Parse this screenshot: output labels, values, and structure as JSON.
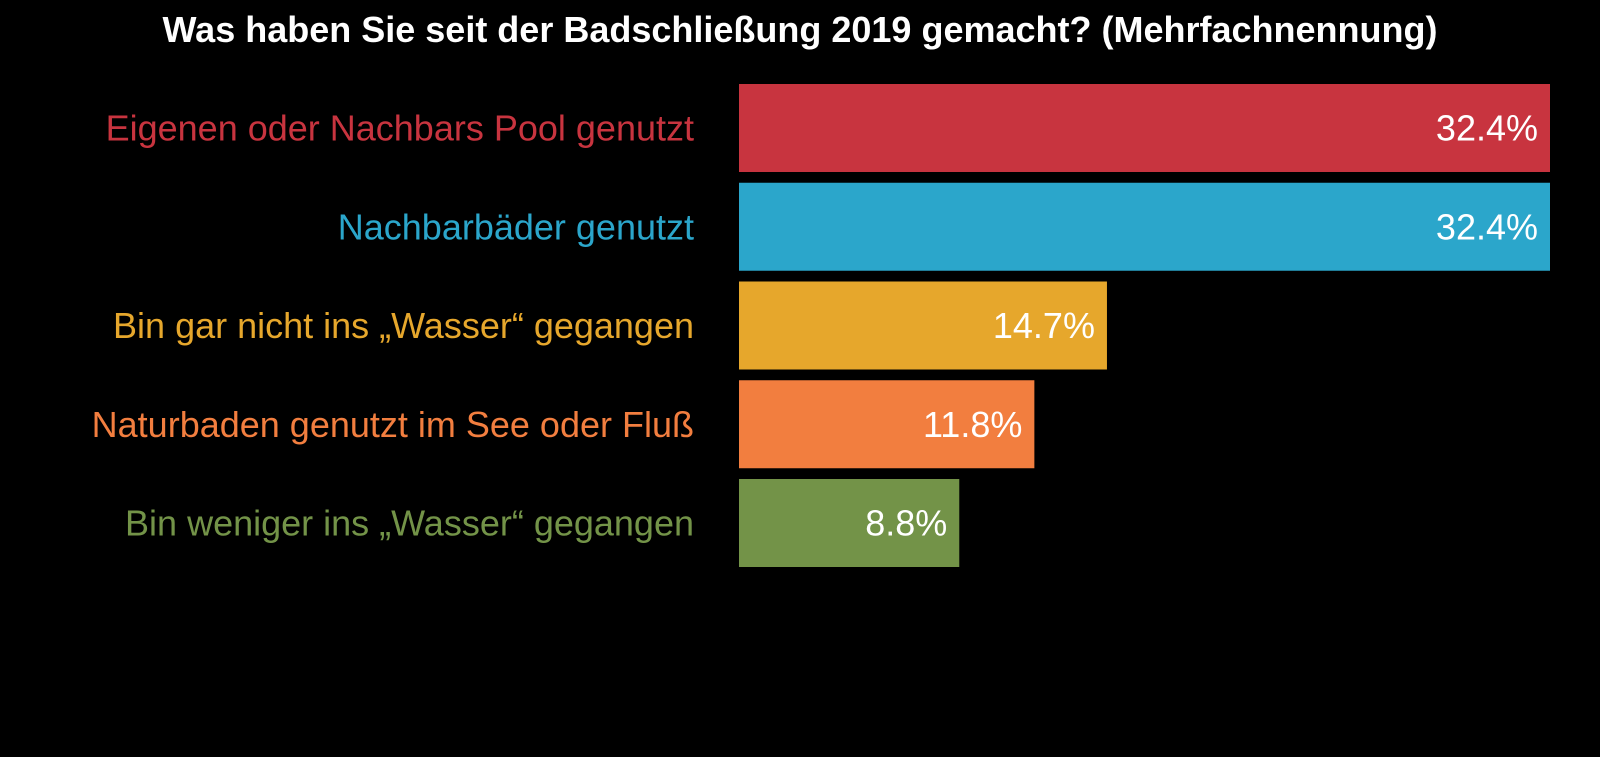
{
  "chart_data": {
    "type": "bar",
    "orientation": "horizontal",
    "title": "Was haben Sie seit der Badschließung 2019 gemacht? (Mehrfachnennung)",
    "categories": [
      "Eigenen oder Nachbars Pool genutzt",
      "Nachbarbäder genutzt",
      "Bin gar nicht ins „Wasser“ gegangen",
      "Naturbaden genutzt im See oder Fluß",
      "Bin weniger ins „Wasser“ gegangen"
    ],
    "values": [
      32.4,
      32.4,
      14.7,
      11.8,
      8.8
    ],
    "value_labels": [
      "32.4%",
      "32.4%",
      "14.7%",
      "11.8%",
      "8.8%"
    ],
    "colors": [
      "#c8343f",
      "#2ba6cb",
      "#e6a72c",
      "#f27e3f",
      "#739348"
    ],
    "xlabel": "",
    "ylabel": "",
    "xlim": [
      0,
      32.4
    ],
    "grid": false,
    "legend": "none"
  }
}
